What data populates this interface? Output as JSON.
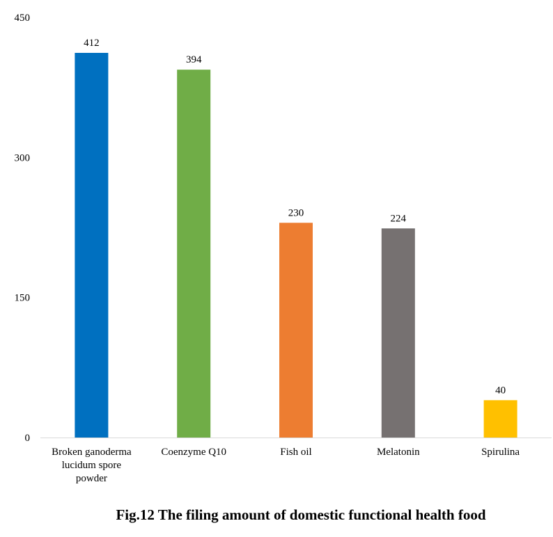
{
  "chart_data": {
    "type": "bar",
    "categories": [
      [
        "Broken ganoderma",
        "lucidum spore",
        "powder"
      ],
      [
        "Coenzyme Q10"
      ],
      [
        "Fish oil"
      ],
      [
        "Melatonin"
      ],
      [
        "Spirulina"
      ]
    ],
    "category_names": [
      "Broken ganoderma lucidum spore powder",
      "Coenzyme Q10",
      "Fish oil",
      "Melatonin",
      "Spirulina"
    ],
    "values": [
      412,
      394,
      230,
      224,
      40
    ],
    "colors": [
      "#0070C0",
      "#70AD47",
      "#ED7D31",
      "#767171",
      "#FFC000"
    ],
    "ylim": [
      0,
      450
    ],
    "yticks": [
      0,
      150,
      300,
      450
    ],
    "title": "Fig.12 The filing amount of domestic functional health food",
    "xlabel": "",
    "ylabel": "",
    "grid": false,
    "axis_color": "#D9D9D9"
  }
}
